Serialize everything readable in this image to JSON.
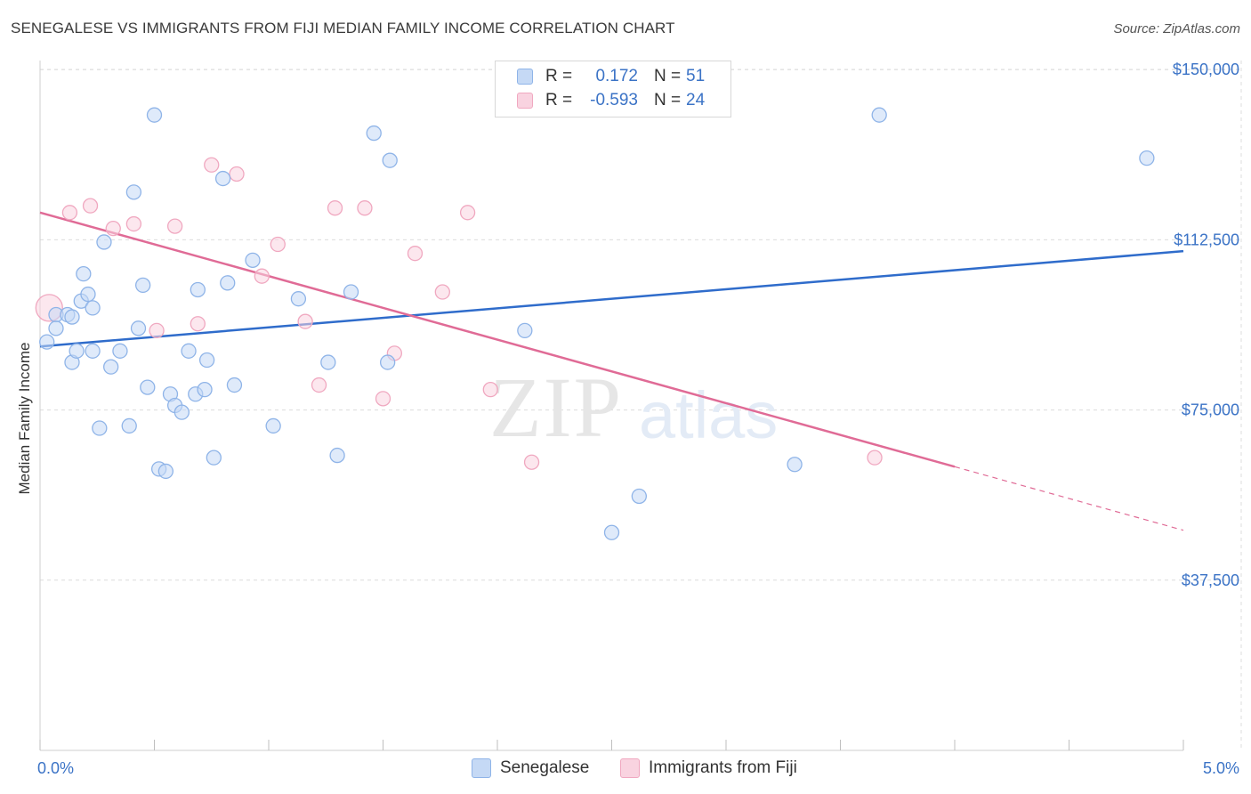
{
  "title": "SENEGALESE VS IMMIGRANTS FROM FIJI MEDIAN FAMILY INCOME CORRELATION CHART",
  "source": "Source: ZipAtlas.com",
  "watermark": {
    "zip": "ZIP",
    "atlas": "atlas"
  },
  "legend": {
    "rows": [
      {
        "r_label": "R =",
        "r_value": "0.172",
        "n_label": "N =",
        "n_value": "51"
      },
      {
        "r_label": "R =",
        "r_value": "-0.593",
        "n_label": "N =",
        "n_value": "24"
      }
    ]
  },
  "chart_data": {
    "type": "scatter",
    "title": "SENEGALESE VS IMMIGRANTS FROM FIJI MEDIAN FAMILY INCOME CORRELATION CHART",
    "xlabel": "",
    "ylabel": "Median Family Income",
    "xlim": [
      0,
      5
    ],
    "ylim": [
      0,
      152000
    ],
    "x_tick_labels": [
      "0.0%",
      "5.0%"
    ],
    "y_ticks": [
      37500,
      75000,
      112500,
      150000
    ],
    "y_tick_labels": [
      "$37,500",
      "$75,000",
      "$112,500",
      "$150,000"
    ],
    "grid": true,
    "legend_position": "top-center",
    "series": [
      {
        "name": "Senegalese",
        "color": "#8fb4e8",
        "fill": "#c5d9f5",
        "line_color": "#2f6ccb",
        "r": 0.172,
        "n": 51,
        "trend": {
          "x": [
            0,
            5
          ],
          "y": [
            89000,
            110000
          ]
        },
        "points": [
          [
            0.03,
            90000
          ],
          [
            0.07,
            96000
          ],
          [
            0.07,
            93000
          ],
          [
            0.12,
            96000
          ],
          [
            0.14,
            85500
          ],
          [
            0.16,
            88000
          ],
          [
            0.18,
            99000
          ],
          [
            0.19,
            105000
          ],
          [
            0.21,
            100500
          ],
          [
            0.23,
            97500
          ],
          [
            0.23,
            88000
          ],
          [
            0.26,
            71000
          ],
          [
            0.28,
            112000
          ],
          [
            0.31,
            84500
          ],
          [
            0.35,
            88000
          ],
          [
            0.39,
            71500
          ],
          [
            0.41,
            123000
          ],
          [
            0.43,
            93000
          ],
          [
            0.45,
            102500
          ],
          [
            0.47,
            80000
          ],
          [
            0.5,
            140000
          ],
          [
            0.52,
            62000
          ],
          [
            0.55,
            61500
          ],
          [
            0.57,
            78500
          ],
          [
            0.59,
            76000
          ],
          [
            0.62,
            74500
          ],
          [
            0.65,
            88000
          ],
          [
            0.68,
            78500
          ],
          [
            0.69,
            101500
          ],
          [
            0.72,
            79500
          ],
          [
            0.73,
            86000
          ],
          [
            0.76,
            64500
          ],
          [
            0.8,
            126000
          ],
          [
            0.82,
            103000
          ],
          [
            0.85,
            80500
          ],
          [
            0.93,
            108000
          ],
          [
            1.02,
            71500
          ],
          [
            1.13,
            99500
          ],
          [
            1.26,
            85500
          ],
          [
            1.3,
            65000
          ],
          [
            1.36,
            101000
          ],
          [
            1.46,
            136000
          ],
          [
            1.52,
            85500
          ],
          [
            1.53,
            130000
          ],
          [
            2.12,
            92500
          ],
          [
            2.5,
            48000
          ],
          [
            2.62,
            56000
          ],
          [
            3.3,
            63000
          ],
          [
            3.67,
            140000
          ],
          [
            4.84,
            130500
          ],
          [
            0.14,
            95500
          ]
        ]
      },
      {
        "name": "Immigrants from Fiji",
        "color": "#f0a8c0",
        "fill": "#f9d3e0",
        "line_color": "#e06b96",
        "r": -0.593,
        "n": 24,
        "trend": {
          "x": [
            0,
            5
          ],
          "y": [
            118500,
            48500
          ],
          "solid_until_x": 4.0
        },
        "points": [
          [
            0.04,
            97500
          ],
          [
            0.13,
            118500
          ],
          [
            0.22,
            120000
          ],
          [
            0.32,
            115000
          ],
          [
            0.41,
            116000
          ],
          [
            0.51,
            92500
          ],
          [
            0.59,
            115500
          ],
          [
            0.69,
            94000
          ],
          [
            0.75,
            129000
          ],
          [
            0.86,
            127000
          ],
          [
            0.97,
            104500
          ],
          [
            1.04,
            111500
          ],
          [
            1.16,
            94500
          ],
          [
            1.22,
            80500
          ],
          [
            1.29,
            119500
          ],
          [
            1.42,
            119500
          ],
          [
            1.5,
            77500
          ],
          [
            1.55,
            87500
          ],
          [
            1.64,
            109500
          ],
          [
            1.76,
            101000
          ],
          [
            1.87,
            118500
          ],
          [
            1.97,
            79500
          ],
          [
            2.15,
            63500
          ],
          [
            3.65,
            64500
          ]
        ]
      }
    ]
  }
}
